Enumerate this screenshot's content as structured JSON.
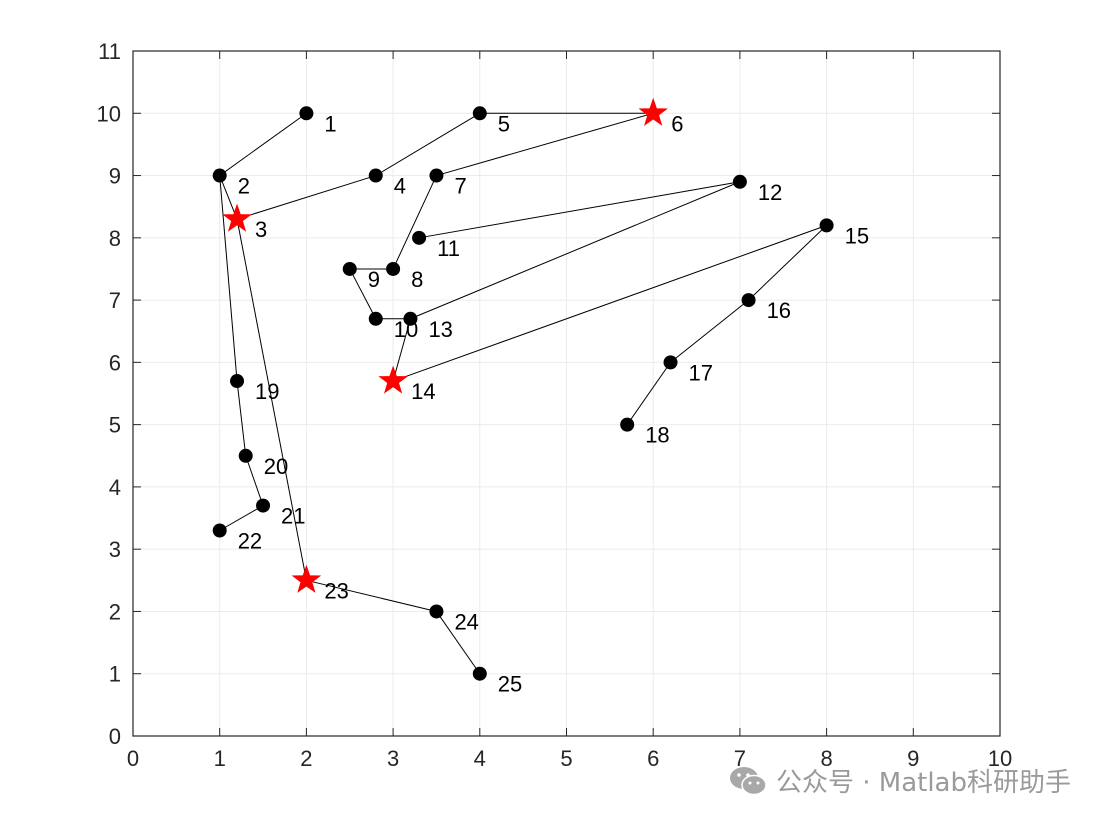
{
  "chart_data": {
    "type": "scatter",
    "xlim": [
      0,
      10
    ],
    "ylim": [
      0,
      11
    ],
    "xticks": [
      0,
      1,
      2,
      3,
      4,
      5,
      6,
      7,
      8,
      9,
      10
    ],
    "yticks": [
      0,
      1,
      2,
      3,
      4,
      5,
      6,
      7,
      8,
      9,
      10,
      11
    ],
    "grid": true,
    "title": "",
    "xlabel": "",
    "ylabel": "",
    "nodes": [
      {
        "id": 1,
        "x": 2.0,
        "y": 10.0,
        "marker": "circle"
      },
      {
        "id": 2,
        "x": 1.0,
        "y": 9.0,
        "marker": "circle"
      },
      {
        "id": 3,
        "x": 1.2,
        "y": 8.3,
        "marker": "star"
      },
      {
        "id": 4,
        "x": 2.8,
        "y": 9.0,
        "marker": "circle"
      },
      {
        "id": 5,
        "x": 4.0,
        "y": 10.0,
        "marker": "circle"
      },
      {
        "id": 6,
        "x": 6.0,
        "y": 10.0,
        "marker": "star"
      },
      {
        "id": 7,
        "x": 3.5,
        "y": 9.0,
        "marker": "circle"
      },
      {
        "id": 8,
        "x": 3.0,
        "y": 7.5,
        "marker": "circle"
      },
      {
        "id": 9,
        "x": 2.5,
        "y": 7.5,
        "marker": "circle"
      },
      {
        "id": 10,
        "x": 2.8,
        "y": 6.7,
        "marker": "circle"
      },
      {
        "id": 11,
        "x": 3.3,
        "y": 8.0,
        "marker": "circle"
      },
      {
        "id": 12,
        "x": 7.0,
        "y": 8.9,
        "marker": "circle"
      },
      {
        "id": 13,
        "x": 3.2,
        "y": 6.7,
        "marker": "circle"
      },
      {
        "id": 14,
        "x": 3.0,
        "y": 5.7,
        "marker": "star"
      },
      {
        "id": 15,
        "x": 8.0,
        "y": 8.2,
        "marker": "circle"
      },
      {
        "id": 16,
        "x": 7.1,
        "y": 7.0,
        "marker": "circle"
      },
      {
        "id": 17,
        "x": 6.2,
        "y": 6.0,
        "marker": "circle"
      },
      {
        "id": 18,
        "x": 5.7,
        "y": 5.0,
        "marker": "circle"
      },
      {
        "id": 19,
        "x": 1.2,
        "y": 5.7,
        "marker": "circle"
      },
      {
        "id": 20,
        "x": 1.3,
        "y": 4.5,
        "marker": "circle"
      },
      {
        "id": 21,
        "x": 1.5,
        "y": 3.7,
        "marker": "circle"
      },
      {
        "id": 22,
        "x": 1.0,
        "y": 3.3,
        "marker": "circle"
      },
      {
        "id": 23,
        "x": 2.0,
        "y": 2.5,
        "marker": "star"
      },
      {
        "id": 24,
        "x": 3.5,
        "y": 2.0,
        "marker": "circle"
      },
      {
        "id": 25,
        "x": 4.0,
        "y": 1.0,
        "marker": "circle"
      }
    ],
    "edges": [
      [
        1,
        2
      ],
      [
        2,
        3
      ],
      [
        3,
        4
      ],
      [
        4,
        5
      ],
      [
        5,
        6
      ],
      [
        6,
        7
      ],
      [
        7,
        8
      ],
      [
        8,
        9
      ],
      [
        9,
        10
      ],
      [
        10,
        13
      ],
      [
        11,
        12
      ],
      [
        12,
        13
      ],
      [
        13,
        14
      ],
      [
        14,
        15
      ],
      [
        15,
        16
      ],
      [
        16,
        17
      ],
      [
        17,
        18
      ],
      [
        2,
        19
      ],
      [
        19,
        20
      ],
      [
        20,
        21
      ],
      [
        21,
        22
      ],
      [
        3,
        23
      ],
      [
        23,
        24
      ],
      [
        24,
        25
      ]
    ],
    "colors": {
      "circle_marker": "#000000",
      "star_marker": "#ff0000",
      "edge": "#000000",
      "grid": "#ebebeb",
      "axis": "#262626"
    }
  },
  "watermark": {
    "text": "公众号 · Matlab科研助手",
    "icon": "wechat-icon"
  }
}
